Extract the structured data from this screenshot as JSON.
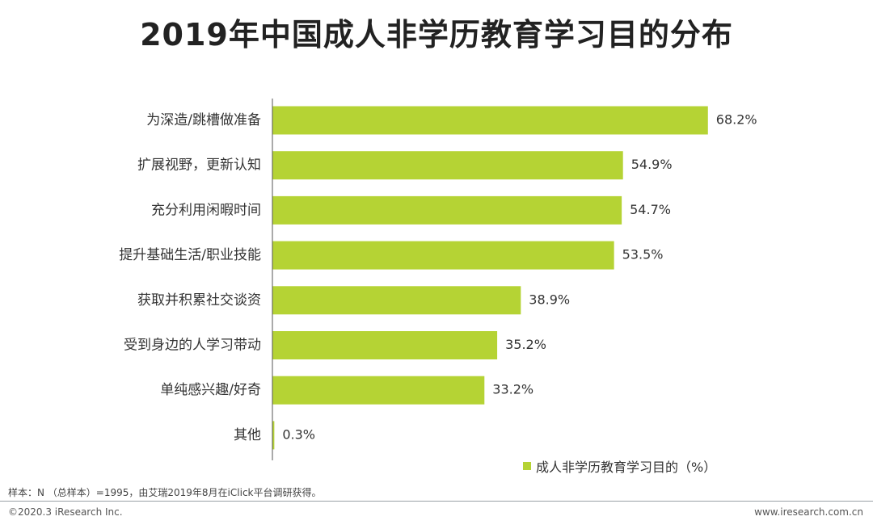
{
  "chart_data": {
    "type": "bar",
    "orientation": "horizontal",
    "title": "2019年中国成人非学历教育学习目的分布",
    "categories": [
      "为深造/跳槽做准备",
      "扩展视野，更新认知",
      "充分利用闲暇时间",
      "提升基础生活/职业技能",
      "获取并积累社交谈资",
      "受到身边的人学习带动",
      "单纯感兴趣/好奇",
      "其他"
    ],
    "values": [
      68.2,
      54.9,
      54.7,
      53.5,
      38.9,
      35.2,
      33.2,
      0.3
    ],
    "value_labels": [
      "68.2%",
      "54.9%",
      "54.7%",
      "53.5%",
      "38.9%",
      "35.2%",
      "33.2%",
      "0.3%"
    ],
    "series_name": "成人非学历教育学习目的（%）",
    "xlim": [
      0,
      100
    ],
    "grid": false,
    "legend_position": "bottom-right",
    "colors": {
      "bar": "#b5d334",
      "axis": "#555555"
    }
  },
  "footer": {
    "note": "样本：N （总样本）=1995，由艾瑞2019年8月在iClick平台调研获得。",
    "copyright": "©2020.3 iResearch Inc.",
    "website": "www.iresearch.com.cn"
  }
}
